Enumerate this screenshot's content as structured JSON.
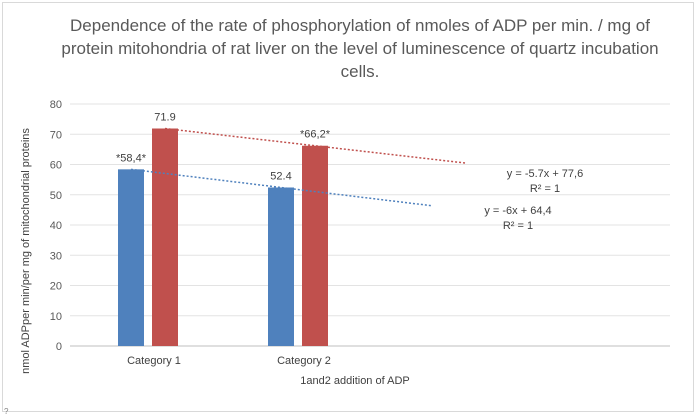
{
  "chart_data": {
    "type": "bar",
    "title": "Dependence of the rate of phosphorylation of nmoles of ADP per min. / mg of protein mitohondria of rat liver on the level of luminescence of quartz incubation cells.",
    "xlabel": "1and2 addition of ADP",
    "ylabel": "nmol ADPper min/per mg of mitochondrial proteins",
    "ylim": [
      0,
      80
    ],
    "yticks": [
      0,
      10,
      20,
      30,
      40,
      50,
      60,
      70,
      80
    ],
    "grid": true,
    "legend": "none",
    "categories": [
      "Category 1",
      "Category 2"
    ],
    "series": [
      {
        "values": [
          58.4,
          52.4
        ],
        "labels": [
          "*58,4*",
          "52.4"
        ],
        "color": "#4f81bd"
      },
      {
        "values": [
          71.9,
          66.2
        ],
        "labels": [
          "71.9",
          "*66,2*"
        ],
        "color": "#c0504d"
      }
    ],
    "trendlines": [
      {
        "series_index": 1,
        "equation": "y = -5.7x + 77,6",
        "r2": "R² = 1",
        "color": "#c0504d",
        "x_end": 3.0
      },
      {
        "series_index": 0,
        "equation": "y = -6x + 64,4",
        "r2": "R² = 1",
        "color": "#4f81bd",
        "x_end": 3.0
      }
    ]
  }
}
